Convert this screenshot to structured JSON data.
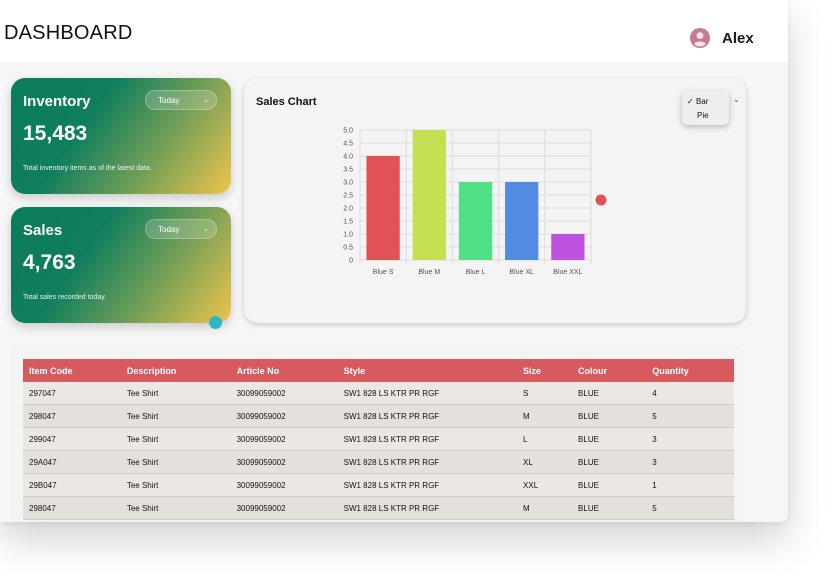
{
  "header": {
    "title": "DASHBOARD",
    "user_name": "Alex"
  },
  "inventory_card": {
    "title": "Inventory",
    "period": "Today",
    "value": "15,483",
    "description": "Total inventory items as of the latest data."
  },
  "sales_card": {
    "title": "Sales",
    "period": "Today",
    "value": "4,763",
    "description": "Total sales recorded today."
  },
  "sales_chart": {
    "title": "Sales Chart",
    "type_options": [
      "Bar",
      "Pie"
    ],
    "selected_option_mark": "✓"
  },
  "chart_data": {
    "type": "bar",
    "title": "Sales Chart",
    "categories": [
      "Blue S",
      "Blue M",
      "Blue L",
      "Blue XL",
      "Blue XXL"
    ],
    "values": [
      4,
      5,
      3,
      3,
      1
    ],
    "colors": [
      "#e05255",
      "#c3e051",
      "#50e085",
      "#528be0",
      "#bd52e0"
    ],
    "ylim": [
      0,
      5
    ],
    "yticks": [
      0,
      0.5,
      1.0,
      1.5,
      2.0,
      2.5,
      3.0,
      3.5,
      4.0,
      4.5,
      5.0
    ],
    "ytick_labels": [
      "0",
      "0.5",
      "1.0",
      "1.5",
      "2.0",
      "2.5",
      "3.0",
      "3.5",
      "4.0",
      "4.5",
      "5.0"
    ],
    "grid": true,
    "legend_position": "right"
  },
  "table": {
    "columns": [
      "Item Code",
      "Description",
      "Article No",
      "Style",
      "Size",
      "Colour",
      "Quantity"
    ],
    "rows": [
      [
        "297047",
        "Tee Shirt",
        "30099059002",
        "SW1 828 LS KTR PR RGF",
        "S",
        "BLUE",
        "4"
      ],
      [
        "298047",
        "Tee Shirt",
        "30099059002",
        "SW1 828 LS KTR PR RGF",
        "M",
        "BLUE",
        "5"
      ],
      [
        "299047",
        "Tee Shirt",
        "30099059002",
        "SW1 828 LS KTR PR RGF",
        "L",
        "BLUE",
        "3"
      ],
      [
        "29A047",
        "Tee Shirt",
        "30099059002",
        "SW1 828 LS KTR PR RGF",
        "XL",
        "BLUE",
        "3"
      ],
      [
        "29B047",
        "Tee Shirt",
        "30099059002",
        "SW1 828 LS KTR PR RGF",
        "XXL",
        "BLUE",
        "1"
      ],
      [
        "298047",
        "Tee Shirt",
        "30099059002",
        "SW1 828 LS KTR PR RGF",
        "M",
        "BLUE",
        "5"
      ]
    ]
  },
  "colors": {
    "accent_red": "#d65a5e",
    "card_green": "#0a7b5c",
    "card_gold": "#efc44c",
    "teal_dot": "#2bb7c4",
    "avatar_pink": "#c77a92"
  },
  "icons": [
    "user-avatar-icon",
    "chevron-down-icon",
    "checkmark-icon"
  ]
}
